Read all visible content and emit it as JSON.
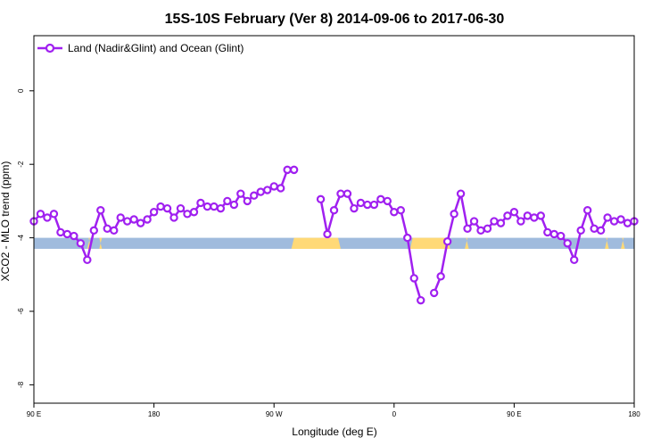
{
  "chart_data": {
    "type": "line",
    "title": "15S-10S February (Ver 8)   2014-09-06 to 2017-06-30",
    "xlabel": "Longitude (deg E)",
    "ylabel": "XCO2 - MLO trend (ppm)",
    "xlim": [
      90,
      450
    ],
    "ylim": [
      -8.5,
      1.5
    ],
    "x_ticks": [
      {
        "value": 90,
        "label": "90 E"
      },
      {
        "value": 180,
        "label": "180"
      },
      {
        "value": 270,
        "label": "90 W"
      },
      {
        "value": 360,
        "label": "0"
      },
      {
        "value": 450,
        "label": "90 E"
      },
      {
        "value": 540,
        "label": "180"
      }
    ],
    "y_ticks": [
      0,
      -2,
      -4,
      -6,
      -8
    ],
    "grid": false,
    "legend_position": "top-left",
    "series": [
      {
        "name": "Land (Nadir&Glint) and Ocean (Glint)",
        "color": "#A020F0",
        "points": [
          [
            90,
            -3.55
          ],
          [
            95,
            -3.35
          ],
          [
            100,
            -3.45
          ],
          [
            105,
            -3.35
          ],
          [
            110,
            -3.85
          ],
          [
            115,
            -3.9
          ],
          [
            120,
            -3.95
          ],
          [
            125,
            -4.15
          ],
          [
            130,
            -4.6
          ],
          [
            135,
            -3.8
          ],
          [
            140,
            -3.25
          ],
          [
            145,
            -3.75
          ],
          [
            150,
            -3.8
          ],
          [
            155,
            -3.45
          ],
          [
            160,
            -3.55
          ],
          [
            165,
            -3.5
          ],
          [
            170,
            -3.6
          ],
          [
            175,
            -3.5
          ],
          [
            180,
            -3.3
          ],
          [
            185,
            -3.15
          ],
          [
            190,
            -3.2
          ],
          [
            195,
            -3.45
          ],
          [
            200,
            -3.2
          ],
          [
            205,
            -3.35
          ],
          [
            210,
            -3.3
          ],
          [
            215,
            -3.05
          ],
          [
            220,
            -3.15
          ],
          [
            225,
            -3.15
          ],
          [
            230,
            -3.2
          ],
          [
            235,
            -3.0
          ],
          [
            240,
            -3.1
          ],
          [
            245,
            -2.8
          ],
          [
            250,
            -3.0
          ],
          [
            255,
            -2.85
          ],
          [
            260,
            -2.75
          ],
          [
            265,
            -2.7
          ],
          [
            270,
            -2.6
          ],
          [
            275,
            -2.65
          ],
          [
            280,
            -2.15
          ],
          [
            285,
            -2.15
          ],
          null,
          [
            305,
            -2.95
          ],
          [
            310,
            -3.9
          ],
          [
            315,
            -3.25
          ],
          [
            320,
            -2.8
          ],
          [
            325,
            -2.8
          ],
          [
            330,
            -3.2
          ],
          [
            335,
            -3.05
          ],
          [
            340,
            -3.1
          ],
          [
            345,
            -3.1
          ],
          [
            350,
            -2.95
          ],
          [
            355,
            -3.0
          ],
          [
            360,
            -3.3
          ],
          [
            365,
            -3.25
          ],
          [
            370,
            -4.0
          ],
          [
            375,
            -5.1
          ],
          [
            380,
            -5.7
          ],
          null,
          [
            390,
            -5.5
          ],
          [
            395,
            -5.05
          ],
          [
            400,
            -4.1
          ],
          [
            405,
            -3.35
          ],
          [
            410,
            -2.8
          ],
          [
            415,
            -3.75
          ],
          [
            420,
            -3.55
          ],
          [
            425,
            -3.8
          ],
          [
            430,
            -3.75
          ],
          [
            435,
            -3.55
          ],
          [
            440,
            -3.6
          ],
          [
            445,
            -3.4
          ],
          [
            450,
            -3.3
          ],
          [
            455,
            -3.55
          ],
          [
            460,
            -3.4
          ],
          [
            465,
            -3.45
          ],
          [
            470,
            -3.4
          ],
          [
            475,
            -3.85
          ],
          [
            480,
            -3.9
          ],
          [
            485,
            -3.95
          ],
          [
            490,
            -4.15
          ],
          [
            495,
            -4.6
          ],
          [
            500,
            -3.8
          ],
          [
            505,
            -3.25
          ],
          [
            510,
            -3.75
          ],
          [
            515,
            -3.8
          ],
          [
            520,
            -3.45
          ],
          [
            525,
            -3.55
          ],
          [
            530,
            -3.5
          ],
          [
            535,
            -3.6
          ],
          [
            540,
            -3.55
          ]
        ]
      }
    ],
    "surface_bar": {
      "y_range": [
        -4.3,
        -4.0
      ],
      "ocean_color": "#A0BBDD",
      "land_color": "#FFD977",
      "land_segments": [
        [
          130,
          133
        ],
        [
          139,
          141
        ],
        [
          283,
          320
        ],
        [
          372,
          402
        ],
        [
          413,
          416
        ],
        [
          518,
          521
        ],
        [
          530,
          533
        ]
      ]
    }
  }
}
